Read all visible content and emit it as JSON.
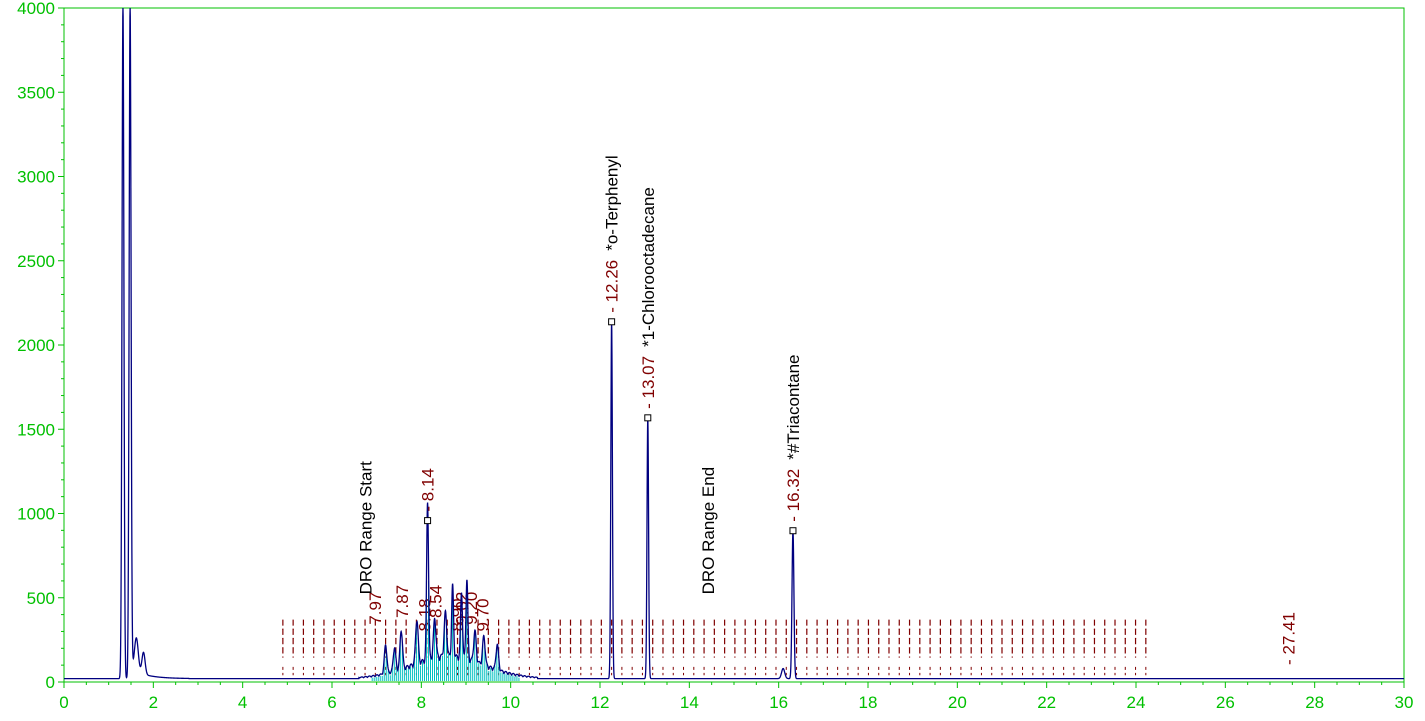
{
  "chart_data": {
    "type": "line",
    "title": "",
    "xlabel": "",
    "ylabel": "",
    "xlim": [
      0,
      30
    ],
    "ylim": [
      0,
      4000
    ],
    "x_ticks": [
      0,
      2,
      4,
      6,
      8,
      10,
      12,
      14,
      16,
      18,
      20,
      22,
      24,
      26,
      28,
      30
    ],
    "y_ticks": [
      0,
      500,
      1000,
      1500,
      2000,
      2500,
      3000,
      3500,
      4000
    ],
    "baseline": 20,
    "peaks": [
      {
        "rt": 1.32,
        "height": 4000,
        "width": 0.03
      },
      {
        "rt": 1.48,
        "height": 4000,
        "width": 0.03
      },
      {
        "rt": 1.62,
        "height": 200,
        "width": 0.06
      },
      {
        "rt": 1.78,
        "height": 130,
        "width": 0.05
      },
      {
        "rt": 7.2,
        "height": 170,
        "width": 0.04
      },
      {
        "rt": 7.4,
        "height": 140,
        "width": 0.04
      },
      {
        "rt": 7.55,
        "height": 230,
        "width": 0.04
      },
      {
        "rt": 7.9,
        "height": 260,
        "width": 0.04
      },
      {
        "rt": 8.14,
        "height": 940,
        "width": 0.03
      },
      {
        "rt": 8.3,
        "height": 230,
        "width": 0.04
      },
      {
        "rt": 8.54,
        "height": 260,
        "width": 0.04
      },
      {
        "rt": 8.7,
        "height": 420,
        "width": 0.03
      },
      {
        "rt": 8.9,
        "height": 390,
        "width": 0.03
      },
      {
        "rt": 9.02,
        "height": 470,
        "width": 0.03
      },
      {
        "rt": 9.2,
        "height": 180,
        "width": 0.04
      },
      {
        "rt": 9.4,
        "height": 170,
        "width": 0.04
      },
      {
        "rt": 9.7,
        "height": 150,
        "width": 0.04
      },
      {
        "rt": 12.26,
        "height": 2120,
        "width": 0.025
      },
      {
        "rt": 13.07,
        "height": 1550,
        "width": 0.025
      },
      {
        "rt": 16.32,
        "height": 880,
        "width": 0.03
      },
      {
        "rt": 16.1,
        "height": 60,
        "width": 0.05
      }
    ],
    "labeled_peaks": [
      {
        "rt": 12.26,
        "label": "12.26",
        "compound": "*o-Terphenyl",
        "height": 2120
      },
      {
        "rt": 13.07,
        "label": "13.07",
        "compound": "*1-Chlorooctadecane",
        "height": 1550
      },
      {
        "rt": 16.32,
        "label": "16.32",
        "compound": "*#Triacontane",
        "height": 880
      },
      {
        "rt": 8.14,
        "label": "8.14",
        "compound": "",
        "height": 940
      },
      {
        "rt": 27.41,
        "label": "27.41",
        "compound": "",
        "height": 30
      }
    ],
    "range_markers": [
      {
        "rt": 6.75,
        "label": "DRO Range Start"
      },
      {
        "rt": 14.42,
        "label": "DRO Range End"
      }
    ],
    "clutter_labels": [
      "8.90",
      "9.02",
      "7.87",
      "8.18",
      "7.97",
      "8.54",
      "9.70",
      "9.20"
    ],
    "colors": {
      "axis": "#00c000",
      "trace": "#000080",
      "baseline_fill": "#00c0c0",
      "rt_label": "#800000",
      "compound_label": "#000000"
    }
  }
}
